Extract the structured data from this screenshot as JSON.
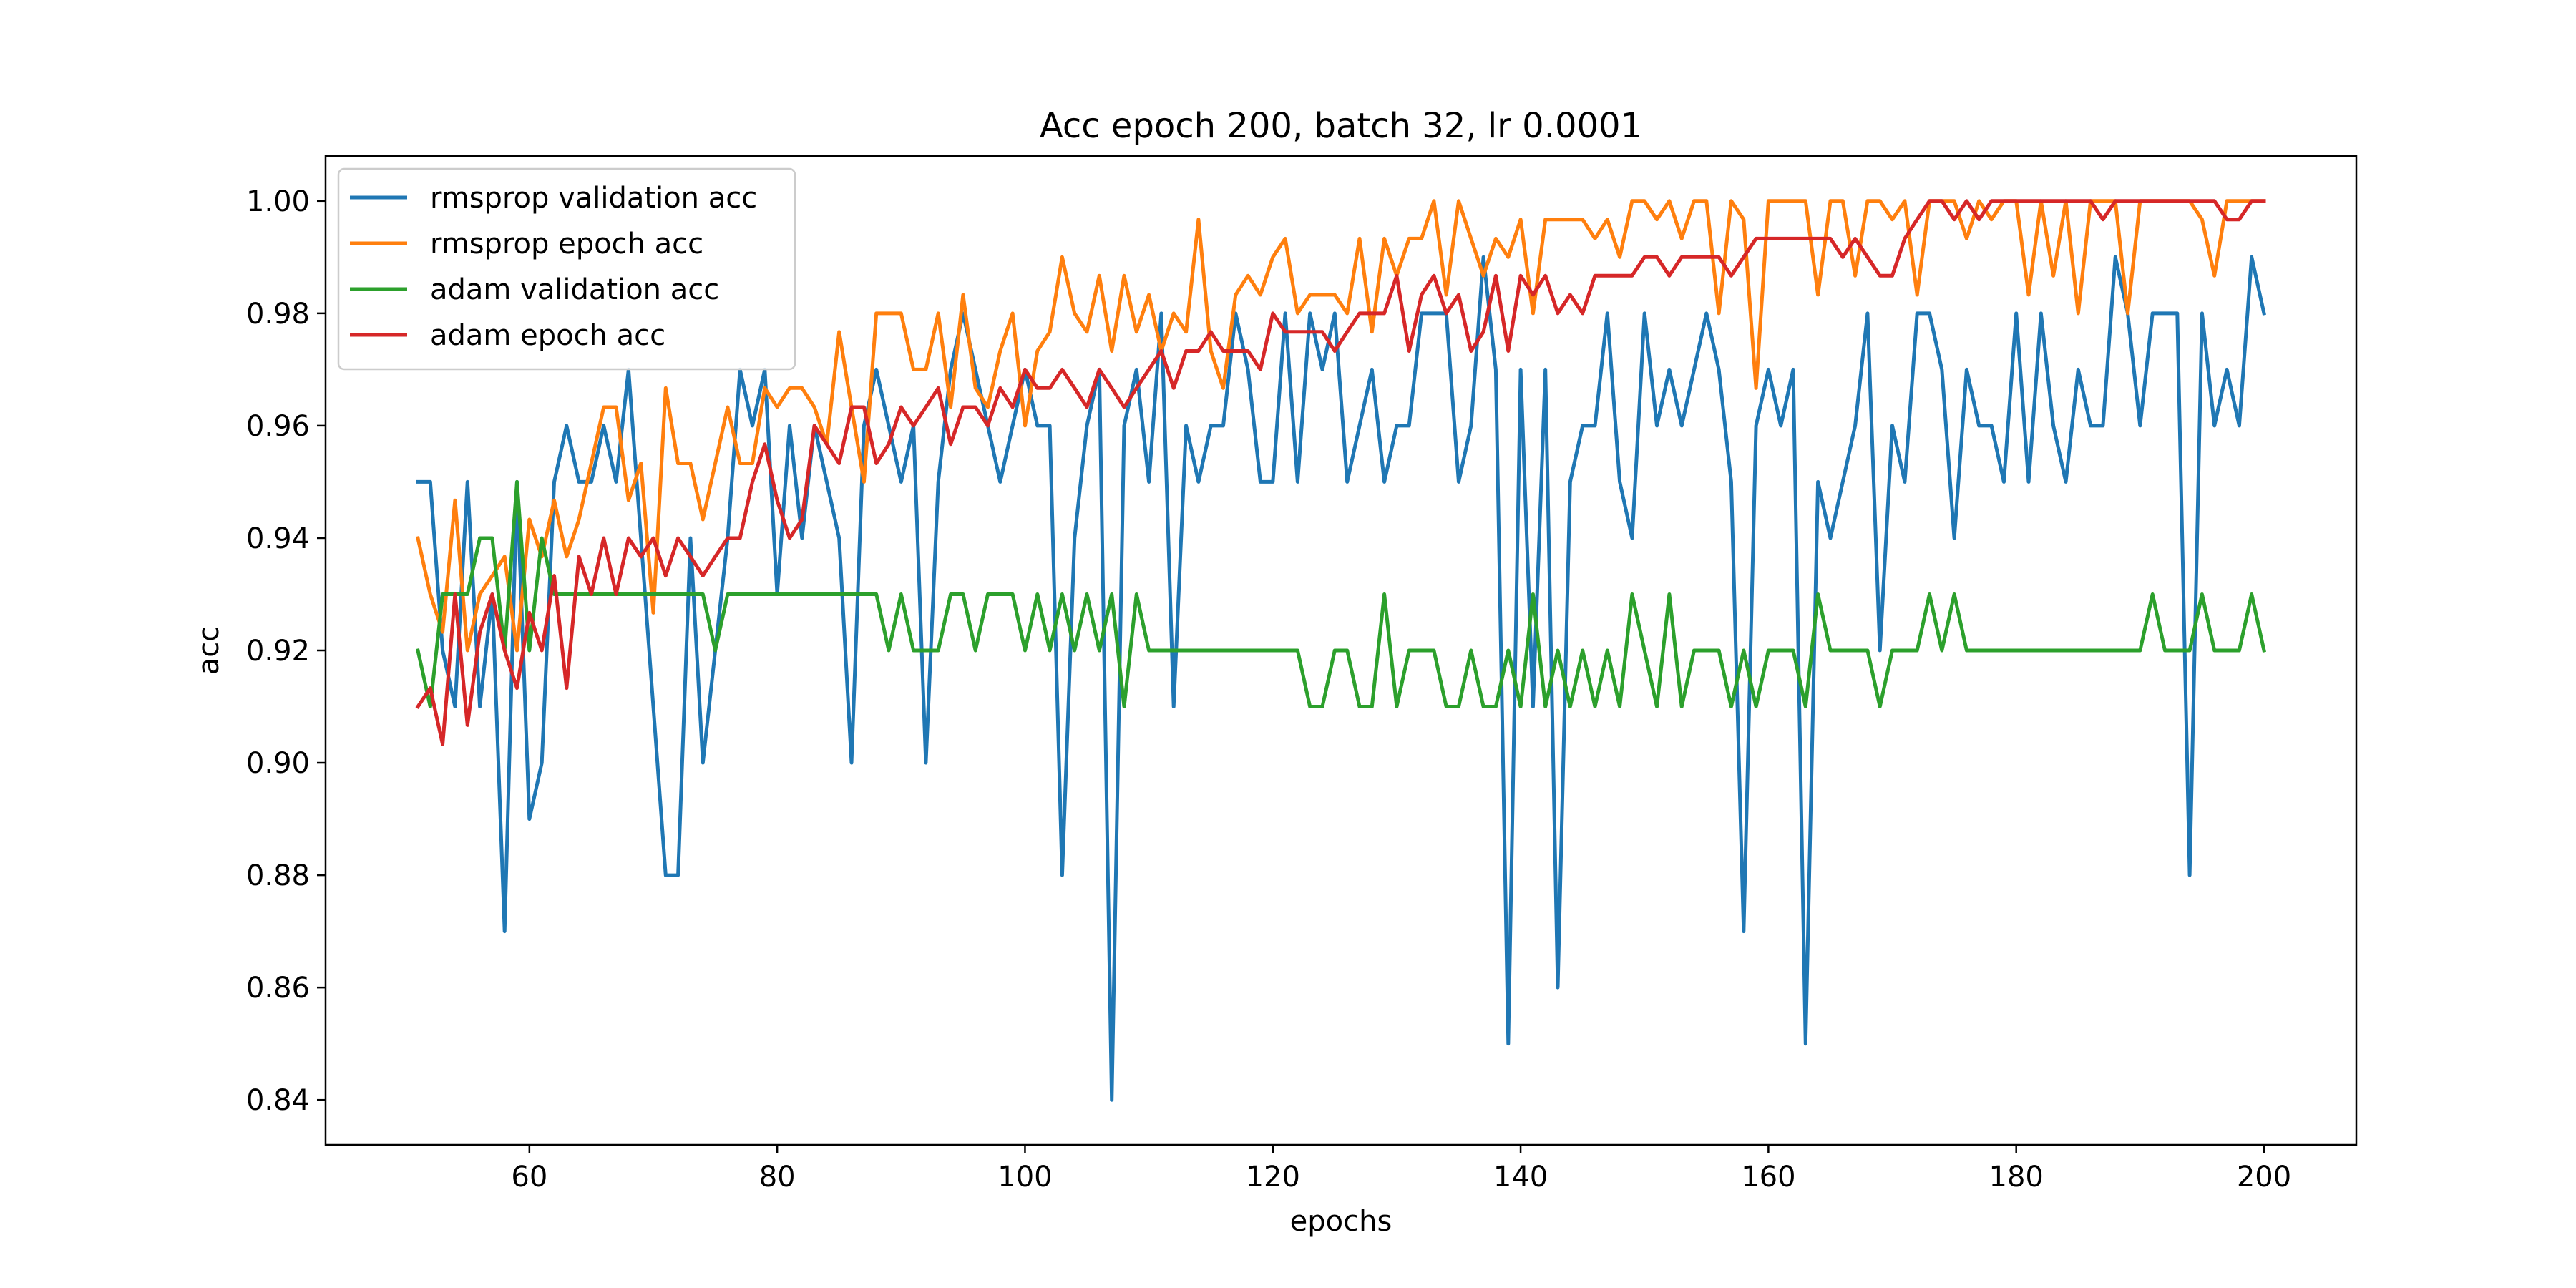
{
  "chart_data": {
    "type": "line",
    "title": "Acc epoch 200, batch 32, lr 0.0001",
    "xlabel": "epochs",
    "ylabel": "acc",
    "xlim": [
      43.55,
      207.45
    ],
    "ylim": [
      0.832,
      1.008
    ],
    "xticks": [
      60,
      80,
      100,
      120,
      140,
      160,
      180,
      200
    ],
    "yticks": [
      0.84,
      0.86,
      0.88,
      0.9,
      0.92,
      0.94,
      0.96,
      0.98,
      1.0
    ],
    "xtick_labels": [
      "60",
      "80",
      "100",
      "120",
      "140",
      "160",
      "180",
      "200"
    ],
    "ytick_labels": [
      "0.84",
      "0.86",
      "0.88",
      "0.90",
      "0.92",
      "0.94",
      "0.96",
      "0.98",
      "1.00"
    ],
    "grid": false,
    "legend_position": "upper-left",
    "x": [
      51,
      52,
      53,
      54,
      55,
      56,
      57,
      58,
      59,
      60,
      61,
      62,
      63,
      64,
      65,
      66,
      67,
      68,
      69,
      70,
      71,
      72,
      73,
      74,
      75,
      76,
      77,
      78,
      79,
      80,
      81,
      82,
      83,
      84,
      85,
      86,
      87,
      88,
      89,
      90,
      91,
      92,
      93,
      94,
      95,
      96,
      97,
      98,
      99,
      100,
      101,
      102,
      103,
      104,
      105,
      106,
      107,
      108,
      109,
      110,
      111,
      112,
      113,
      114,
      115,
      116,
      117,
      118,
      119,
      120,
      121,
      122,
      123,
      124,
      125,
      126,
      127,
      128,
      129,
      130,
      131,
      132,
      133,
      134,
      135,
      136,
      137,
      138,
      139,
      140,
      141,
      142,
      143,
      144,
      145,
      146,
      147,
      148,
      149,
      150,
      151,
      152,
      153,
      154,
      155,
      156,
      157,
      158,
      159,
      160,
      161,
      162,
      163,
      164,
      165,
      166,
      167,
      168,
      169,
      170,
      171,
      172,
      173,
      174,
      175,
      176,
      177,
      178,
      179,
      180,
      181,
      182,
      183,
      184,
      185,
      186,
      187,
      188,
      189,
      190,
      191,
      192,
      193,
      194,
      195,
      196,
      197,
      198,
      199,
      200
    ],
    "series": [
      {
        "name": "rmsprop validation acc",
        "color": "#1f77b4",
        "values": [
          0.95,
          0.95,
          0.92,
          0.91,
          0.95,
          0.91,
          0.93,
          0.87,
          0.95,
          0.89,
          0.9,
          0.95,
          0.96,
          0.95,
          0.95,
          0.96,
          0.95,
          0.97,
          0.94,
          0.91,
          0.88,
          0.88,
          0.94,
          0.9,
          0.92,
          0.94,
          0.97,
          0.96,
          0.97,
          0.93,
          0.96,
          0.94,
          0.96,
          0.95,
          0.94,
          0.9,
          0.96,
          0.97,
          0.96,
          0.95,
          0.96,
          0.9,
          0.95,
          0.97,
          0.98,
          0.97,
          0.96,
          0.95,
          0.96,
          0.97,
          0.96,
          0.96,
          0.88,
          0.94,
          0.96,
          0.97,
          0.84,
          0.96,
          0.97,
          0.95,
          0.98,
          0.91,
          0.96,
          0.95,
          0.96,
          0.96,
          0.98,
          0.97,
          0.95,
          0.95,
          0.98,
          0.95,
          0.98,
          0.97,
          0.98,
          0.95,
          0.96,
          0.97,
          0.95,
          0.96,
          0.96,
          0.98,
          0.98,
          0.98,
          0.95,
          0.96,
          0.99,
          0.97,
          0.85,
          0.97,
          0.91,
          0.97,
          0.86,
          0.95,
          0.96,
          0.96,
          0.98,
          0.95,
          0.94,
          0.98,
          0.96,
          0.97,
          0.96,
          0.97,
          0.98,
          0.97,
          0.95,
          0.87,
          0.96,
          0.97,
          0.96,
          0.97,
          0.85,
          0.95,
          0.94,
          0.95,
          0.96,
          0.98,
          0.92,
          0.96,
          0.95,
          0.98,
          0.98,
          0.97,
          0.94,
          0.97,
          0.96,
          0.96,
          0.95,
          0.98,
          0.95,
          0.98,
          0.96,
          0.95,
          0.97,
          0.96,
          0.96,
          0.99,
          0.98,
          0.96,
          0.98,
          0.98,
          0.98,
          0.88,
          0.98,
          0.96,
          0.97,
          0.96,
          0.99,
          0.98
        ]
      },
      {
        "name": "rmsprop epoch acc",
        "color": "#ff7f0e",
        "values": [
          0.94,
          0.93,
          0.9233,
          0.9467,
          0.92,
          0.93,
          0.9333,
          0.9367,
          0.92,
          0.9433,
          0.9367,
          0.9467,
          0.9367,
          0.9433,
          0.9533,
          0.9633,
          0.9633,
          0.9467,
          0.9533,
          0.9267,
          0.9667,
          0.9533,
          0.9533,
          0.9433,
          0.9533,
          0.9633,
          0.9533,
          0.9533,
          0.9667,
          0.9633,
          0.9667,
          0.9667,
          0.9633,
          0.9567,
          0.9767,
          0.9633,
          0.95,
          0.98,
          0.98,
          0.98,
          0.97,
          0.97,
          0.98,
          0.9633,
          0.9833,
          0.9667,
          0.9633,
          0.9733,
          0.98,
          0.96,
          0.9733,
          0.9767,
          0.99,
          0.98,
          0.9767,
          0.9867,
          0.9733,
          0.9867,
          0.9767,
          0.9833,
          0.9733,
          0.98,
          0.9767,
          0.9967,
          0.9733,
          0.9667,
          0.9833,
          0.9867,
          0.9833,
          0.99,
          0.9933,
          0.98,
          0.9833,
          0.9833,
          0.9833,
          0.98,
          0.9933,
          0.9767,
          0.9933,
          0.9867,
          0.9933,
          0.9933,
          1.0,
          0.9833,
          1.0,
          0.9933,
          0.9867,
          0.9933,
          0.99,
          0.9967,
          0.98,
          0.9967,
          0.9967,
          0.9967,
          0.9967,
          0.9933,
          0.9967,
          0.99,
          1.0,
          1.0,
          0.9967,
          1.0,
          0.9933,
          1.0,
          1.0,
          0.98,
          1.0,
          0.9967,
          0.9667,
          1.0,
          1.0,
          1.0,
          1.0,
          0.9833,
          1.0,
          1.0,
          0.9867,
          1.0,
          1.0,
          0.9967,
          1.0,
          0.9833,
          1.0,
          1.0,
          1.0,
          0.9933,
          1.0,
          0.9967,
          1.0,
          1.0,
          0.9833,
          1.0,
          0.9867,
          1.0,
          0.98,
          1.0,
          1.0,
          1.0,
          0.98,
          1.0,
          1.0,
          1.0,
          1.0,
          1.0,
          0.9967,
          0.9867,
          1.0,
          1.0,
          1.0,
          1.0
        ]
      },
      {
        "name": "adam validation acc",
        "color": "#2ca02c",
        "values": [
          0.92,
          0.91,
          0.93,
          0.93,
          0.93,
          0.94,
          0.94,
          0.92,
          0.95,
          0.92,
          0.94,
          0.93,
          0.93,
          0.93,
          0.93,
          0.93,
          0.93,
          0.93,
          0.93,
          0.93,
          0.93,
          0.93,
          0.93,
          0.93,
          0.92,
          0.93,
          0.93,
          0.93,
          0.93,
          0.93,
          0.93,
          0.93,
          0.93,
          0.93,
          0.93,
          0.93,
          0.93,
          0.93,
          0.92,
          0.93,
          0.92,
          0.92,
          0.92,
          0.93,
          0.93,
          0.92,
          0.93,
          0.93,
          0.93,
          0.92,
          0.93,
          0.92,
          0.93,
          0.92,
          0.93,
          0.92,
          0.93,
          0.91,
          0.93,
          0.92,
          0.92,
          0.92,
          0.92,
          0.92,
          0.92,
          0.92,
          0.92,
          0.92,
          0.92,
          0.92,
          0.92,
          0.92,
          0.91,
          0.91,
          0.92,
          0.92,
          0.91,
          0.91,
          0.93,
          0.91,
          0.92,
          0.92,
          0.92,
          0.91,
          0.91,
          0.92,
          0.91,
          0.91,
          0.92,
          0.91,
          0.93,
          0.91,
          0.92,
          0.91,
          0.92,
          0.91,
          0.92,
          0.91,
          0.93,
          0.92,
          0.91,
          0.93,
          0.91,
          0.92,
          0.92,
          0.92,
          0.91,
          0.92,
          0.91,
          0.92,
          0.92,
          0.92,
          0.91,
          0.93,
          0.92,
          0.92,
          0.92,
          0.92,
          0.91,
          0.92,
          0.92,
          0.92,
          0.93,
          0.92,
          0.93,
          0.92,
          0.92,
          0.92,
          0.92,
          0.92,
          0.92,
          0.92,
          0.92,
          0.92,
          0.92,
          0.92,
          0.92,
          0.92,
          0.92,
          0.92,
          0.93,
          0.92,
          0.92,
          0.92,
          0.93,
          0.92,
          0.92,
          0.92,
          0.93,
          0.92
        ]
      },
      {
        "name": "adam epoch acc",
        "color": "#d62728",
        "values": [
          0.91,
          0.9133,
          0.9033,
          0.93,
          0.9067,
          0.9233,
          0.93,
          0.92,
          0.9133,
          0.9267,
          0.92,
          0.9333,
          0.9133,
          0.9367,
          0.93,
          0.94,
          0.93,
          0.94,
          0.9367,
          0.94,
          0.9333,
          0.94,
          0.9367,
          0.9333,
          0.9367,
          0.94,
          0.94,
          0.95,
          0.9567,
          0.9467,
          0.94,
          0.9433,
          0.96,
          0.9567,
          0.9533,
          0.9633,
          0.9633,
          0.9533,
          0.9567,
          0.9633,
          0.96,
          0.9633,
          0.9667,
          0.9567,
          0.9633,
          0.9633,
          0.96,
          0.9667,
          0.9633,
          0.97,
          0.9667,
          0.9667,
          0.97,
          0.9667,
          0.9633,
          0.97,
          0.9667,
          0.9633,
          0.9667,
          0.97,
          0.9733,
          0.9667,
          0.9733,
          0.9733,
          0.9767,
          0.9733,
          0.9733,
          0.9733,
          0.97,
          0.98,
          0.9767,
          0.9767,
          0.9767,
          0.9767,
          0.9733,
          0.9767,
          0.98,
          0.98,
          0.98,
          0.9867,
          0.9733,
          0.9833,
          0.9867,
          0.98,
          0.9833,
          0.9733,
          0.9767,
          0.9867,
          0.9733,
          0.9867,
          0.9833,
          0.9867,
          0.98,
          0.9833,
          0.98,
          0.9867,
          0.9867,
          0.9867,
          0.9867,
          0.99,
          0.99,
          0.9867,
          0.99,
          0.99,
          0.99,
          0.99,
          0.9867,
          0.99,
          0.9933,
          0.9933,
          0.9933,
          0.9933,
          0.9933,
          0.9933,
          0.9933,
          0.99,
          0.9933,
          0.99,
          0.9867,
          0.9867,
          0.9933,
          0.9967,
          1.0,
          1.0,
          0.9967,
          1.0,
          0.9967,
          1.0,
          1.0,
          1.0,
          1.0,
          1.0,
          1.0,
          1.0,
          1.0,
          1.0,
          0.9967,
          1.0,
          1.0,
          1.0,
          1.0,
          1.0,
          1.0,
          1.0,
          1.0,
          1.0,
          0.9967,
          0.9967,
          1.0,
          1.0
        ]
      }
    ]
  }
}
